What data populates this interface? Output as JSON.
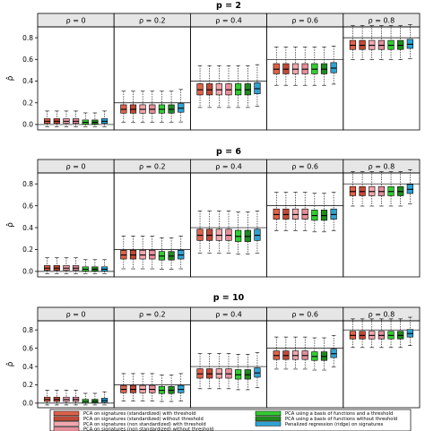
{
  "legend": [
    {
      "label": "PCA on signatures (standardized) with threshold",
      "color": "#e0624a"
    },
    {
      "label": "PCA on signatures (standardized) without threshold",
      "color": "#c24a36"
    },
    {
      "label": "PCA on signatures (non standardized) with threshold",
      "color": "#f1a7ad"
    },
    {
      "label": "PCA on signatures (non standardized) without threshold",
      "color": "#e48f9b"
    },
    {
      "label": "PCA using a basis of functions and a threshold",
      "color": "#33cc33"
    },
    {
      "label": "PCA using a basis of functions without threshold",
      "color": "#1f8a1f"
    },
    {
      "label": "Penalized regression (ridge) on signatures",
      "color": "#2da3d6"
    }
  ],
  "chart_data": [
    {
      "type": "boxplot",
      "title": "p = 2",
      "ylabel": "ρ̂",
      "ylim": [
        -0.05,
        0.9
      ],
      "yticks": [
        0.0,
        0.2,
        0.4,
        0.6,
        0.8
      ],
      "panels": [
        "ρ = 0",
        "ρ = 0.2",
        "ρ = 0.4",
        "ρ = 0.6",
        "ρ = 0.8"
      ],
      "true_values": [
        0.0,
        0.2,
        0.4,
        0.6,
        0.8
      ],
      "series": [
        {
          "name": "PCA on signatures (standardized) with threshold",
          "medians": [
            0.03,
            0.14,
            0.32,
            0.51,
            0.73
          ]
        },
        {
          "name": "PCA on signatures (standardized) without threshold",
          "medians": [
            0.03,
            0.14,
            0.32,
            0.51,
            0.73
          ]
        },
        {
          "name": "PCA on signatures (non standardized) with threshold",
          "medians": [
            0.03,
            0.14,
            0.32,
            0.51,
            0.73
          ]
        },
        {
          "name": "PCA on signatures (non standardized) without threshold",
          "medians": [
            0.03,
            0.14,
            0.32,
            0.51,
            0.73
          ]
        },
        {
          "name": "PCA using a basis of functions and a threshold",
          "medians": [
            0.02,
            0.14,
            0.32,
            0.51,
            0.73
          ]
        },
        {
          "name": "PCA using a basis of functions without threshold",
          "medians": [
            0.02,
            0.14,
            0.32,
            0.51,
            0.73
          ]
        },
        {
          "name": "Penalized regression (ridge) on signatures",
          "medians": [
            0.03,
            0.15,
            0.33,
            0.52,
            0.74
          ]
        }
      ]
    },
    {
      "type": "boxplot",
      "title": "p = 6",
      "ylabel": "ρ̂",
      "ylim": [
        -0.05,
        0.9
      ],
      "yticks": [
        0.0,
        0.2,
        0.4,
        0.6,
        0.8
      ],
      "panels": [
        "ρ = 0",
        "ρ = 0.2",
        "ρ = 0.4",
        "ρ = 0.6",
        "ρ = 0.8"
      ],
      "true_values": [
        0.0,
        0.2,
        0.4,
        0.6,
        0.8
      ],
      "series": [
        {
          "name": "PCA on signatures (standardized) with threshold",
          "medians": [
            0.03,
            0.15,
            0.33,
            0.52,
            0.73
          ]
        },
        {
          "name": "PCA on signatures (standardized) without threshold",
          "medians": [
            0.03,
            0.15,
            0.33,
            0.52,
            0.73
          ]
        },
        {
          "name": "PCA on signatures (non standardized) with threshold",
          "medians": [
            0.03,
            0.15,
            0.33,
            0.52,
            0.73
          ]
        },
        {
          "name": "PCA on signatures (non standardized) without threshold",
          "medians": [
            0.03,
            0.15,
            0.33,
            0.52,
            0.73
          ]
        },
        {
          "name": "PCA using a basis of functions and a threshold",
          "medians": [
            0.02,
            0.14,
            0.32,
            0.51,
            0.73
          ]
        },
        {
          "name": "PCA using a basis of functions without threshold",
          "medians": [
            0.02,
            0.14,
            0.32,
            0.51,
            0.73
          ]
        },
        {
          "name": "Penalized regression (ridge) on signatures",
          "medians": [
            0.02,
            0.15,
            0.33,
            0.52,
            0.75
          ]
        }
      ]
    },
    {
      "type": "boxplot",
      "title": "p = 10",
      "ylabel": "ρ̂",
      "ylim": [
        -0.05,
        0.9
      ],
      "yticks": [
        0.0,
        0.2,
        0.4,
        0.6,
        0.8
      ],
      "panels": [
        "ρ = 0",
        "ρ = 0.2",
        "ρ = 0.4",
        "ρ = 0.6",
        "ρ = 0.8"
      ],
      "true_values": [
        0.0,
        0.2,
        0.4,
        0.6,
        0.8
      ],
      "series": [
        {
          "name": "PCA on signatures (standardized) with threshold",
          "medians": [
            0.04,
            0.15,
            0.32,
            0.52,
            0.74
          ]
        },
        {
          "name": "PCA on signatures (standardized) without threshold",
          "medians": [
            0.04,
            0.15,
            0.32,
            0.52,
            0.74
          ]
        },
        {
          "name": "PCA on signatures (non standardized) with threshold",
          "medians": [
            0.04,
            0.15,
            0.32,
            0.52,
            0.74
          ]
        },
        {
          "name": "PCA on signatures (non standardized) without threshold",
          "medians": [
            0.04,
            0.15,
            0.32,
            0.52,
            0.74
          ]
        },
        {
          "name": "PCA using a basis of functions and a threshold",
          "medians": [
            0.02,
            0.14,
            0.31,
            0.51,
            0.74
          ]
        },
        {
          "name": "PCA using a basis of functions without threshold",
          "medians": [
            0.02,
            0.14,
            0.31,
            0.51,
            0.74
          ]
        },
        {
          "name": "Penalized regression (ridge) on signatures",
          "medians": [
            0.03,
            0.15,
            0.33,
            0.54,
            0.76
          ]
        }
      ]
    }
  ]
}
